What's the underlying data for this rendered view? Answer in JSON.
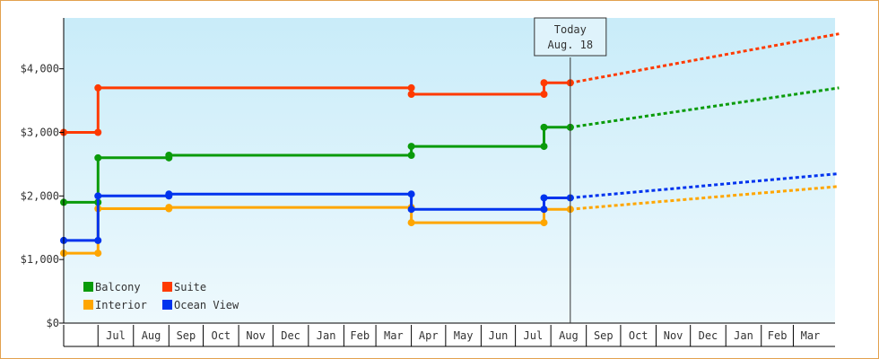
{
  "chart_data": {
    "type": "line",
    "title": "",
    "xlabel": "",
    "ylabel": "",
    "ylim": [
      0,
      4800
    ],
    "y_ticks": [
      {
        "value": 0,
        "label": "$0"
      },
      {
        "value": 1000,
        "label": "$1,000"
      },
      {
        "value": 2000,
        "label": "$2,000"
      },
      {
        "value": 3000,
        "label": "$3,000"
      },
      {
        "value": 4000,
        "label": "$4,000"
      }
    ],
    "x_start": "2017-06-01",
    "x_end": "2018-04-23",
    "months": [
      {
        "label": "Jul",
        "start": "2017-07-01"
      },
      {
        "label": "Aug",
        "start": "2017-08-01"
      },
      {
        "label": "Sep",
        "start": "2017-09-01"
      },
      {
        "label": "Oct",
        "start": "2017-10-01"
      },
      {
        "label": "Nov",
        "start": "2017-11-01"
      },
      {
        "label": "Dec",
        "start": "2017-12-01"
      },
      {
        "label": "Jan",
        "start": "2018-01-01"
      },
      {
        "label": "Feb",
        "start": "2018-02-01"
      },
      {
        "label": "Mar",
        "start": "2018-03-01"
      },
      {
        "label": "Apr",
        "start": "2018-04-01"
      },
      {
        "label": "May",
        "start": "2018-05-01"
      },
      {
        "label": "Jun",
        "start": "2018-06-01"
      },
      {
        "label": "Jul",
        "start": "2018-07-01"
      },
      {
        "label": "Aug",
        "start": "2018-08-01"
      },
      {
        "label": "Sep",
        "start": "2018-09-01"
      },
      {
        "label": "Oct",
        "start": "2018-10-01"
      },
      {
        "label": "Nov",
        "start": "2018-11-01"
      },
      {
        "label": "Dec",
        "start": "2018-12-01"
      },
      {
        "label": "Jan",
        "start": "2019-01-01"
      },
      {
        "label": "Feb",
        "start": "2019-02-01"
      },
      {
        "label": "Mar",
        "start": "2019-03-01"
      }
    ],
    "today": {
      "line1": "Today",
      "line2": "Aug. 18",
      "date": "2018-08-18"
    },
    "legend": {
      "placement": "bottom-left"
    },
    "series": [
      {
        "name": "Balcony",
        "color": "#0a9b0a",
        "steps": [
          {
            "date": "2017-06-01",
            "value": 1900
          },
          {
            "date": "2017-07-01",
            "value": 1900
          },
          {
            "date": "2017-07-01",
            "value": 2600
          },
          {
            "date": "2017-09-01",
            "value": 2600
          },
          {
            "date": "2017-09-01",
            "value": 2640
          },
          {
            "date": "2018-04-01",
            "value": 2640
          },
          {
            "date": "2018-04-01",
            "value": 2780
          },
          {
            "date": "2018-07-26",
            "value": 2780
          },
          {
            "date": "2018-07-26",
            "value": 3080
          },
          {
            "date": "2018-08-18",
            "value": 3080
          }
        ],
        "forecast": [
          {
            "date": "2018-08-18",
            "value": 3080
          },
          {
            "date": "2019-04-10",
            "value": 3700
          }
        ]
      },
      {
        "name": "Suite",
        "color": "#ff3a00",
        "steps": [
          {
            "date": "2017-06-01",
            "value": 3000
          },
          {
            "date": "2017-07-01",
            "value": 3000
          },
          {
            "date": "2017-07-01",
            "value": 3700
          },
          {
            "date": "2018-04-01",
            "value": 3700
          },
          {
            "date": "2018-04-01",
            "value": 3600
          },
          {
            "date": "2018-07-26",
            "value": 3600
          },
          {
            "date": "2018-07-26",
            "value": 3780
          },
          {
            "date": "2018-08-18",
            "value": 3780
          }
        ],
        "forecast": [
          {
            "date": "2018-08-18",
            "value": 3780
          },
          {
            "date": "2019-04-10",
            "value": 4550
          }
        ]
      },
      {
        "name": "Interior",
        "color": "#ffa600",
        "steps": [
          {
            "date": "2017-06-01",
            "value": 1100
          },
          {
            "date": "2017-07-01",
            "value": 1100
          },
          {
            "date": "2017-07-01",
            "value": 1800
          },
          {
            "date": "2017-09-01",
            "value": 1800
          },
          {
            "date": "2017-09-01",
            "value": 1820
          },
          {
            "date": "2018-04-01",
            "value": 1820
          },
          {
            "date": "2018-04-01",
            "value": 1580
          },
          {
            "date": "2018-07-26",
            "value": 1580
          },
          {
            "date": "2018-07-26",
            "value": 1790
          },
          {
            "date": "2018-08-18",
            "value": 1790
          }
        ],
        "forecast": [
          {
            "date": "2018-08-18",
            "value": 1790
          },
          {
            "date": "2019-04-10",
            "value": 2150
          }
        ]
      },
      {
        "name": "Ocean View",
        "color": "#0033ee",
        "steps": [
          {
            "date": "2017-06-01",
            "value": 1300
          },
          {
            "date": "2017-07-01",
            "value": 1300
          },
          {
            "date": "2017-07-01",
            "value": 2000
          },
          {
            "date": "2017-09-01",
            "value": 2000
          },
          {
            "date": "2017-09-01",
            "value": 2030
          },
          {
            "date": "2018-04-01",
            "value": 2030
          },
          {
            "date": "2018-04-01",
            "value": 1790
          },
          {
            "date": "2018-07-26",
            "value": 1790
          },
          {
            "date": "2018-07-26",
            "value": 1970
          },
          {
            "date": "2018-08-18",
            "value": 1970
          }
        ],
        "forecast": [
          {
            "date": "2018-08-18",
            "value": 1970
          },
          {
            "date": "2019-04-10",
            "value": 2350
          }
        ]
      }
    ],
    "legend_order": [
      "Balcony",
      "Suite",
      "Interior",
      "Ocean View"
    ]
  }
}
